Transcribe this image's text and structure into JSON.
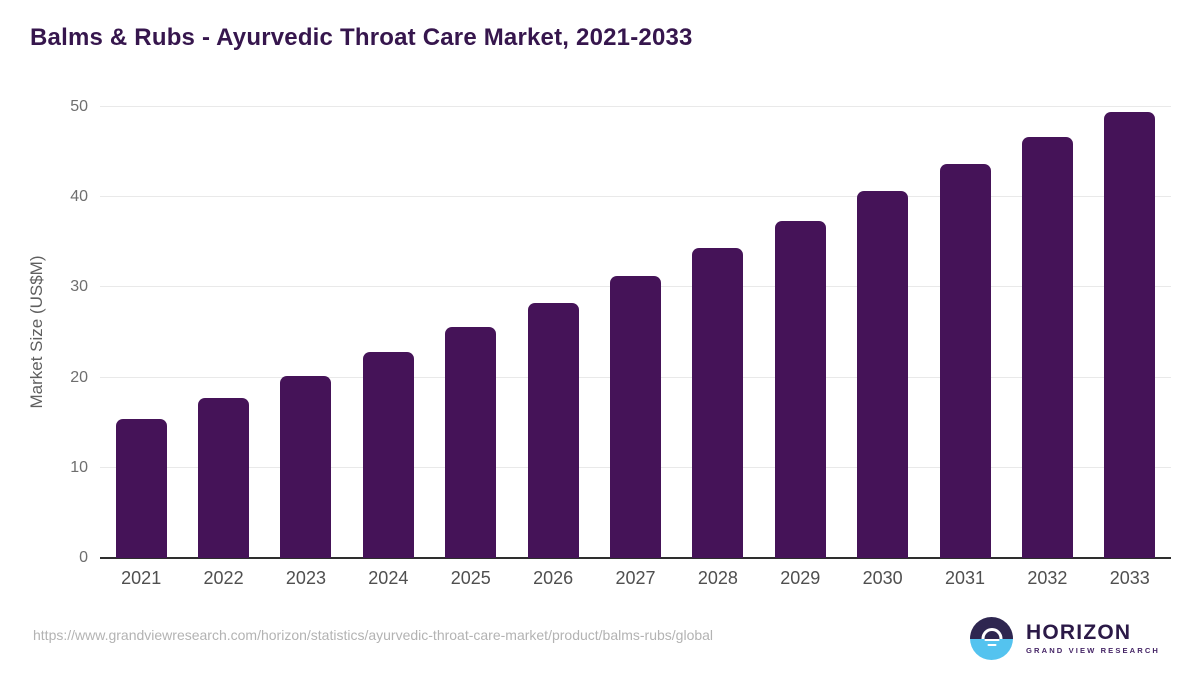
{
  "header": {
    "title": "Balms & Rubs - Ayurvedic Throat Care Market, 2021-2033"
  },
  "chart_data": {
    "type": "bar",
    "title": "Balms & Rubs - Ayurvedic Throat Care Market, 2021-2033",
    "categories": [
      "2021",
      "2022",
      "2023",
      "2024",
      "2025",
      "2026",
      "2027",
      "2028",
      "2029",
      "2030",
      "2031",
      "2032",
      "2033"
    ],
    "values": [
      15.4,
      17.7,
      20.2,
      22.8,
      25.6,
      28.3,
      31.3,
      34.4,
      37.4,
      40.7,
      43.7,
      46.7,
      49.5
    ],
    "xlabel": "",
    "ylabel": "Market Size (US$M)",
    "ylim": [
      0,
      50
    ],
    "yticks": [
      0,
      10,
      20,
      30,
      40,
      50
    ],
    "grid": true,
    "legend": false,
    "bar_color": "#451358"
  },
  "colors": {
    "bar": "#451358",
    "title": "#36164d",
    "axis_title": "#5f5f5f",
    "y_tick": "#6e6e6e",
    "x_tick": "#4f4f4f",
    "gridline": "#e9e9e9",
    "axis_line": "#2e2e2e",
    "footer_url": "#b3b3b3",
    "logo_circle_top": "#2e2650",
    "logo_circle_bottom": "#54c3ef",
    "logo_brand": "#2b1947",
    "logo_subtitle": "#452566"
  },
  "footer": {
    "source_url": "https://www.grandviewresearch.com/horizon/statistics/ayurvedic-throat-care-market/product/balms-rubs/global",
    "logo": {
      "brand": "HORIZON",
      "subtitle": "GRAND VIEW RESEARCH"
    }
  }
}
